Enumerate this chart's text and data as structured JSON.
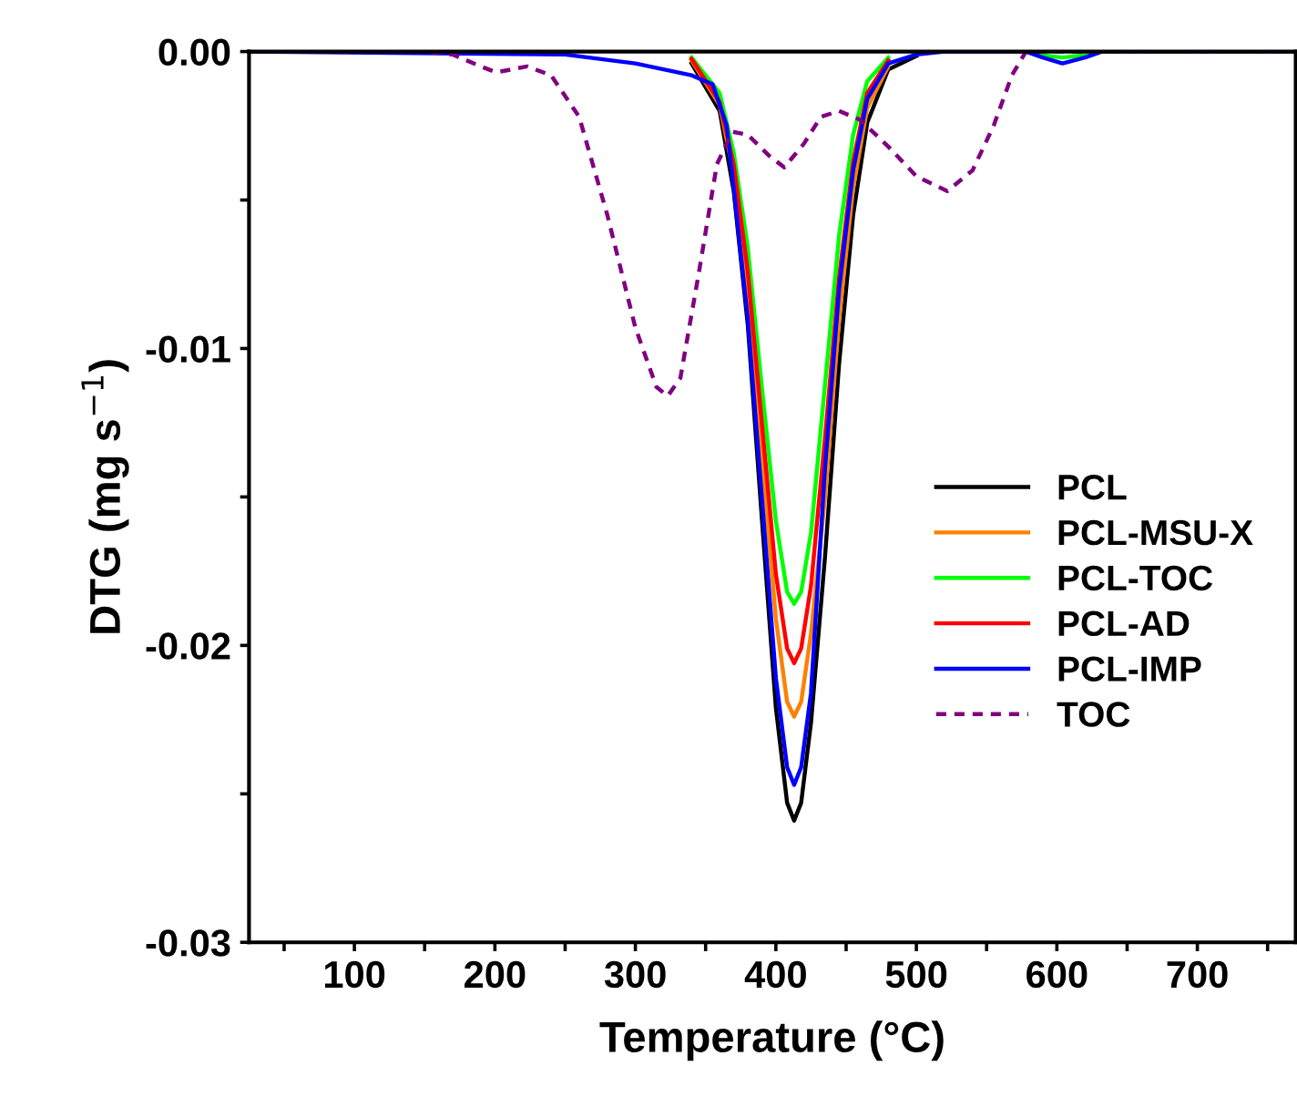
{
  "chart_data": {
    "type": "line",
    "xlabel": "Temperature (°C)",
    "ylabel": "DTG (mg s$^{−1}$)",
    "xlim": [
      25,
      770
    ],
    "ylim": [
      -0.03,
      0
    ],
    "xticks": [
      {
        "value": 50,
        "label": null
      },
      100,
      {
        "value": 150,
        "label": null
      },
      200,
      {
        "value": 250,
        "label": null
      },
      300,
      {
        "value": 350,
        "label": null
      },
      400,
      {
        "value": 450,
        "label": null
      },
      500,
      {
        "value": 550,
        "label": null
      },
      600,
      {
        "value": 650,
        "label": null
      },
      700,
      {
        "value": 750,
        "label": null
      }
    ],
    "yticks": [
      {
        "value": 0,
        "label": "0.00"
      },
      {
        "value": -0.005,
        "label": null
      },
      {
        "value": -0.01,
        "label": "-0.01"
      },
      {
        "value": -0.015,
        "label": null
      },
      {
        "value": -0.02,
        "label": "-0.02"
      },
      {
        "value": -0.025,
        "label": null
      },
      {
        "value": -0.03,
        "label": "-0.03"
      }
    ],
    "grid": false,
    "legend": "right",
    "marker": "none",
    "series": [
      {
        "name": "PCL",
        "color": "#000000",
        "line_style": "solid",
        "x": [
          340,
          360,
          370,
          380,
          390,
          400,
          408,
          413,
          418,
          425,
          435,
          445,
          455,
          465,
          480,
          500
        ],
        "values": [
          -0.0004,
          -0.002,
          -0.0047,
          -0.0092,
          -0.0157,
          -0.0221,
          -0.0253,
          -0.0259,
          -0.0253,
          -0.0226,
          -0.017,
          -0.0105,
          -0.0055,
          -0.0024,
          -0.0006,
          -0.00015
        ]
      },
      {
        "name": "PCL-MSU-X",
        "color": "#ff8000",
        "line_style": "solid",
        "x": [
          340,
          360,
          370,
          380,
          390,
          400,
          408,
          413,
          418,
          425,
          435,
          445,
          455,
          465,
          480
        ],
        "values": [
          -0.0003,
          -0.0018,
          -0.0041,
          -0.008,
          -0.0136,
          -0.0191,
          -0.0219,
          -0.0224,
          -0.0219,
          -0.0196,
          -0.015,
          -0.009,
          -0.0046,
          -0.0019,
          -0.0005
        ]
      },
      {
        "name": "PCL-TOC",
        "color": "#00ff00",
        "line_style": "solid",
        "x": [
          340,
          360,
          370,
          380,
          390,
          400,
          408,
          413,
          418,
          425,
          435,
          445,
          455,
          465,
          480,
          500,
          585,
          604,
          625
        ],
        "values": [
          -0.0002,
          -0.0014,
          -0.0034,
          -0.0066,
          -0.0113,
          -0.0158,
          -0.0182,
          -0.0186,
          -0.0182,
          -0.0162,
          -0.0112,
          -0.0062,
          -0.0028,
          -0.001,
          -0.0002,
          null,
          -0.0001,
          -0.0002,
          -0.0001
        ]
      },
      {
        "name": "PCL-AD",
        "color": "#ff0000",
        "line_style": "solid",
        "x": [
          340,
          360,
          370,
          380,
          390,
          400,
          408,
          413,
          418,
          425,
          435,
          445,
          455,
          465,
          480
        ],
        "values": [
          -0.00025,
          -0.0017,
          -0.0038,
          -0.0074,
          -0.0125,
          -0.0176,
          -0.0201,
          -0.0206,
          -0.0201,
          -0.018,
          -0.013,
          -0.0076,
          -0.0037,
          -0.0014,
          -0.0003
        ]
      },
      {
        "name": "PCL-IMP",
        "color": "#0000ff",
        "line_style": "solid",
        "x": [
          25,
          250,
          300,
          340,
          355,
          365,
          370,
          380,
          390,
          400,
          408,
          413,
          418,
          425,
          435,
          445,
          455,
          465,
          480,
          500,
          520,
          578,
          590,
          604,
          620,
          632,
          770
        ],
        "values": [
          0,
          -0.0001,
          -0.0004,
          -0.0008,
          -0.0011,
          -0.0025,
          -0.0046,
          -0.009,
          -0.015,
          -0.0211,
          -0.0241,
          -0.0247,
          -0.0241,
          -0.0216,
          -0.014,
          -0.008,
          -0.004,
          -0.0016,
          -0.0004,
          -0.0001,
          0,
          0,
          -0.0002,
          -0.0004,
          -0.0002,
          0,
          0
        ]
      },
      {
        "name": "TOC",
        "color": "#800080",
        "line_style": "dashed",
        "x": [
          25,
          150,
          170,
          190,
          201,
          212,
          223,
          240,
          260,
          280,
          300,
          315,
          323,
          332,
          345,
          358,
          369,
          380,
          395,
          406,
          420,
          432,
          445,
          460,
          480,
          500,
          522,
          540,
          555,
          568,
          578,
          650,
          770
        ],
        "values": [
          0,
          0,
          -0.0001,
          -0.0005,
          -0.0007,
          -0.0006,
          -0.0005,
          -0.0008,
          -0.0022,
          -0.0055,
          -0.0093,
          -0.0113,
          -0.0116,
          -0.011,
          -0.0075,
          -0.0038,
          -0.0027,
          -0.0028,
          -0.0035,
          -0.0039,
          -0.0031,
          -0.0022,
          -0.002,
          -0.0023,
          -0.0032,
          -0.0042,
          -0.0047,
          -0.004,
          -0.0025,
          -0.0008,
          0,
          0,
          0
        ]
      }
    ]
  }
}
